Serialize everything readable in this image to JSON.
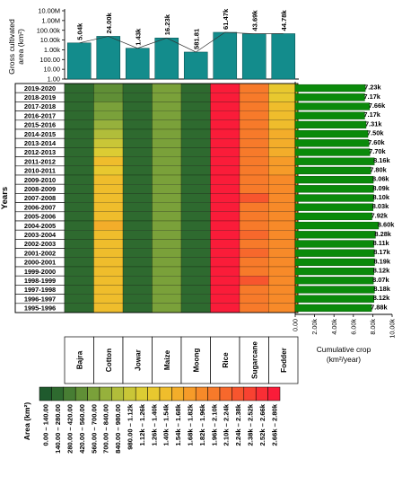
{
  "chart_data": [
    {
      "type": "bar",
      "ylabel_lines": [
        "Gross cultivated",
        "area (km²)"
      ],
      "yscale": "log",
      "ylim": [
        1,
        10000000
      ],
      "ytick_labels": [
        "1.00",
        "10.00",
        "100.00",
        "1.00k",
        "10.00k",
        "100.00k",
        "1.00M",
        "10.00M"
      ],
      "categories": [
        "Bajra",
        "Cotton",
        "Jowar",
        "Maize",
        "Moong",
        "Rice",
        "Sugarcane",
        "Fodder"
      ],
      "values": [
        5040,
        24000,
        1430,
        16230,
        581.81,
        61470,
        43690,
        44780
      ],
      "value_labels": [
        "5.04k",
        "24.00k",
        "1.43k",
        "16.23k",
        "581.81",
        "61.47k",
        "43.69k",
        "44.78k"
      ],
      "bar_color": "#138c8c"
    },
    {
      "type": "heatmap",
      "ylabel": "Years",
      "rows": [
        "2019-2020",
        "2018-2019",
        "2017-2018",
        "2016-2017",
        "2015-2016",
        "2014-2015",
        "2013-2014",
        "2012-2013",
        "2011-2012",
        "2010-2011",
        "2009-2010",
        "2008-2009",
        "2007-2008",
        "2006-2007",
        "2005-2006",
        "2004-2005",
        "2003-2004",
        "2002-2003",
        "2001-2002",
        "2000-2001",
        "1999-2000",
        "1998-1999",
        "1997-1998",
        "1996-1997",
        "1995-1996"
      ],
      "columns": [
        "Bajra",
        "Cotton",
        "Jowar",
        "Maize",
        "Moong",
        "Rice",
        "Sugarcane",
        "Fodder"
      ],
      "class_matrix": [
        [
          1,
          3,
          1,
          4,
          1,
          19,
          14,
          9
        ],
        [
          1,
          3,
          1,
          4,
          1,
          19,
          14,
          9
        ],
        [
          1,
          4,
          1,
          4,
          1,
          19,
          14,
          10
        ],
        [
          1,
          4,
          1,
          4,
          1,
          19,
          14,
          10
        ],
        [
          1,
          5,
          1,
          4,
          1,
          19,
          14,
          10
        ],
        [
          1,
          6,
          1,
          4,
          1,
          19,
          14,
          11
        ],
        [
          1,
          7,
          1,
          4,
          1,
          19,
          14,
          11
        ],
        [
          1,
          8,
          1,
          4,
          1,
          19,
          14,
          11
        ],
        [
          1,
          10,
          1,
          4,
          1,
          19,
          14,
          12
        ],
        [
          1,
          9,
          1,
          4,
          1,
          19,
          14,
          12
        ],
        [
          1,
          10,
          1,
          4,
          1,
          19,
          14,
          13
        ],
        [
          1,
          10,
          1,
          4,
          1,
          19,
          14,
          13
        ],
        [
          1,
          10,
          1,
          4,
          1,
          19,
          16,
          13
        ],
        [
          1,
          10,
          1,
          4,
          1,
          19,
          14,
          13
        ],
        [
          1,
          10,
          1,
          4,
          1,
          19,
          14,
          13
        ],
        [
          1,
          11,
          1,
          4,
          1,
          19,
          14,
          13
        ],
        [
          1,
          10,
          1,
          4,
          1,
          19,
          15,
          13
        ],
        [
          1,
          10,
          1,
          4,
          1,
          19,
          14,
          13
        ],
        [
          1,
          10,
          1,
          4,
          1,
          19,
          15,
          13
        ],
        [
          1,
          10,
          1,
          4,
          1,
          19,
          14,
          13
        ],
        [
          1,
          10,
          1,
          4,
          1,
          19,
          14,
          13
        ],
        [
          1,
          10,
          1,
          4,
          1,
          19,
          16,
          13
        ],
        [
          1,
          10,
          1,
          4,
          1,
          19,
          14,
          13
        ],
        [
          1,
          10,
          1,
          4,
          1,
          19,
          14,
          13
        ],
        [
          1,
          10,
          1,
          4,
          1,
          19,
          14,
          13
        ]
      ]
    },
    {
      "type": "bar",
      "orientation": "horizontal",
      "xlabel_lines": [
        "Cumulative crop",
        "(km²/year)"
      ],
      "xlim": [
        0,
        10000
      ],
      "xtick_labels": [
        "0.00",
        "2.00k",
        "4.00k",
        "6.00k",
        "8.00k",
        "10.00k"
      ],
      "categories": [
        "2019-2020",
        "2018-2019",
        "2017-2018",
        "2016-2017",
        "2015-2016",
        "2014-2015",
        "2013-2014",
        "2012-2013",
        "2011-2012",
        "2010-2011",
        "2009-2010",
        "2008-2009",
        "2007-2008",
        "2006-2007",
        "2005-2006",
        "2004-2005",
        "2003-2004",
        "2002-2003",
        "2001-2002",
        "2000-2001",
        "1999-2000",
        "1998-1999",
        "1997-1998",
        "1996-1997",
        "1995-1996"
      ],
      "values": [
        7230,
        7170,
        7660,
        7170,
        7310,
        7500,
        7600,
        7700,
        8160,
        7800,
        8060,
        8090,
        8100,
        8030,
        7920,
        8600,
        8280,
        8110,
        8170,
        8190,
        8120,
        8070,
        8180,
        8120,
        7880
      ],
      "value_labels": [
        "7.23k",
        "7.17k",
        "7.66k",
        "7.17k",
        "7.31k",
        "7.50k",
        "7.60k",
        "7.70k",
        "8.16k",
        "7.80k",
        "8.06k",
        "8.09k",
        "8.10k",
        "8.03k",
        "7.92k",
        "8.60k",
        "8.28k",
        "8.11k",
        "8.17k",
        "8.19k",
        "8.12k",
        "8.07k",
        "8.18k",
        "8.12k",
        "7.88k"
      ],
      "bar_color": "#0a8a0a"
    }
  ],
  "legend": {
    "title": "Area (km²)",
    "classes": [
      {
        "label": "0.00 – 140.00",
        "color": "#1f5a2d"
      },
      {
        "label": "140.00 – 280.00",
        "color": "#2e6a2f"
      },
      {
        "label": "280.00 – 420.00",
        "color": "#477d33"
      },
      {
        "label": "420.00 – 560.00",
        "color": "#608f36"
      },
      {
        "label": "560.00 – 700.00",
        "color": "#7aa13a"
      },
      {
        "label": "700.00 – 840.00",
        "color": "#96b13c"
      },
      {
        "label": "840.00 – 980.00",
        "color": "#b1bd3a"
      },
      {
        "label": "980.00 – 1.12k",
        "color": "#c9c637"
      },
      {
        "label": "1.12k – 1.26k",
        "color": "#dccc33"
      },
      {
        "label": "1.26k – 1.40k",
        "color": "#e8c82f"
      },
      {
        "label": "1.40k – 1.54k",
        "color": "#efbd2c"
      },
      {
        "label": "1.54k – 1.68k",
        "color": "#f3ad2a"
      },
      {
        "label": "1.68k – 1.82k",
        "color": "#f69b29"
      },
      {
        "label": "1.82k – 1.96k",
        "color": "#f78a29"
      },
      {
        "label": "1.96k – 2.10k",
        "color": "#f77a2a"
      },
      {
        "label": "2.10k – 2.24k",
        "color": "#f7682c"
      },
      {
        "label": "2.24k – 2.38k",
        "color": "#f7552e"
      },
      {
        "label": "2.38k – 2.52k",
        "color": "#f84231"
      },
      {
        "label": "2.52k – 2.66k",
        "color": "#f92e35"
      },
      {
        "label": "2.66k – 2.80k",
        "color": "#fa1c39"
      }
    ]
  }
}
